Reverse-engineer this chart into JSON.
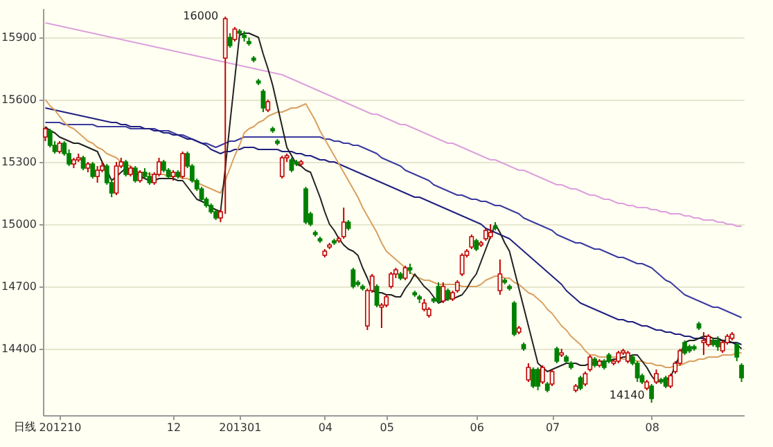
{
  "chart_data": {
    "type": "candlestick",
    "categories": [
      null,
      null,
      null,
      "201210",
      null,
      null,
      null,
      null,
      null,
      null,
      null,
      null,
      null,
      null,
      null,
      null,
      null,
      null,
      null,
      null,
      null,
      null,
      null,
      null,
      null,
      null,
      null,
      "12",
      null,
      null,
      null,
      null,
      null,
      null,
      null,
      null,
      null,
      null,
      null,
      null,
      null,
      "201301",
      null,
      null,
      null,
      null,
      null,
      null,
      null,
      null,
      null,
      null,
      null,
      null,
      null,
      null,
      null,
      null,
      null,
      "04",
      null,
      null,
      null,
      null,
      null,
      null,
      null,
      null,
      null,
      null,
      null,
      null,
      "05",
      null,
      null,
      null,
      null,
      null,
      null,
      null,
      null,
      null,
      null,
      null,
      null,
      null,
      null,
      null,
      null,
      null,
      null,
      "06",
      null,
      null,
      null,
      null,
      null,
      null,
      null,
      null,
      null,
      null,
      null,
      null,
      null,
      null,
      null,
      "07",
      null,
      null,
      null,
      null,
      null,
      null,
      null,
      null,
      null,
      null,
      null,
      null,
      null,
      null,
      null,
      null,
      null,
      null,
      null,
      null,
      "08",
      null,
      null,
      null,
      null,
      null,
      null,
      null,
      null,
      null,
      null,
      null,
      null,
      null,
      null,
      null,
      null,
      null,
      null,
      null
    ],
    "ohlc": [
      [
        15420,
        15470,
        15400,
        15460
      ],
      [
        15450,
        15460,
        15370,
        15380
      ],
      [
        15380,
        15400,
        15340,
        15350
      ],
      [
        15350,
        15400,
        15340,
        15390
      ],
      [
        15390,
        15400,
        15330,
        15340
      ],
      [
        15340,
        15360,
        15280,
        15290
      ],
      [
        15290,
        15320,
        15270,
        15310
      ],
      [
        15310,
        15340,
        15300,
        15320
      ],
      [
        15320,
        15330,
        15260,
        15270
      ],
      [
        15270,
        15300,
        15250,
        15290
      ],
      [
        15290,
        15300,
        15220,
        15230
      ],
      [
        15230,
        15280,
        15200,
        15260
      ],
      [
        15260,
        15300,
        15250,
        15280
      ],
      [
        15280,
        15290,
        15190,
        15200
      ],
      [
        15200,
        15220,
        15130,
        15150
      ],
      [
        15150,
        15300,
        15140,
        15280
      ],
      [
        15280,
        15320,
        15270,
        15300
      ],
      [
        15300,
        15310,
        15230,
        15240
      ],
      [
        15240,
        15280,
        15230,
        15270
      ],
      [
        15270,
        15280,
        15200,
        15210
      ],
      [
        15210,
        15260,
        15200,
        15250
      ],
      [
        15250,
        15270,
        15220,
        15230
      ],
      [
        15230,
        15250,
        15190,
        15200
      ],
      [
        15200,
        15250,
        15190,
        15240
      ],
      [
        15240,
        15320,
        15230,
        15300
      ],
      [
        15300,
        15310,
        15250,
        15260
      ],
      [
        15260,
        15270,
        15220,
        15230
      ],
      [
        15230,
        15260,
        15210,
        15250
      ],
      [
        15250,
        15260,
        15220,
        15230
      ],
      [
        15230,
        15350,
        15220,
        15340
      ],
      [
        15340,
        15350,
        15270,
        15280
      ],
      [
        15280,
        15290,
        15200,
        15210
      ],
      [
        15210,
        15220,
        15160,
        15170
      ],
      [
        15170,
        15180,
        15110,
        15120
      ],
      [
        15120,
        15130,
        15080,
        15090
      ],
      [
        15090,
        15100,
        15050,
        15060
      ],
      [
        15060,
        15070,
        15020,
        15030
      ],
      [
        15030,
        15070,
        15010,
        15060
      ],
      [
        15800,
        16000,
        15050,
        15990
      ],
      [
        15900,
        15920,
        15850,
        15860
      ],
      [
        15890,
        15950,
        15880,
        15940
      ],
      [
        15930,
        15940,
        15910,
        15920
      ],
      [
        15910,
        15930,
        15880,
        15900
      ],
      [
        15880,
        15900,
        15860,
        15870
      ],
      [
        15800,
        15810,
        15780,
        15790
      ],
      [
        15690,
        15700,
        15670,
        15680
      ],
      [
        15640,
        15650,
        15540,
        15560
      ],
      [
        15550,
        15600,
        15540,
        15590
      ],
      [
        15460,
        15470,
        15440,
        15450
      ],
      [
        15400,
        15410,
        15380,
        15390
      ],
      [
        15230,
        15330,
        15220,
        15320
      ],
      [
        15320,
        15340,
        15300,
        15330
      ],
      [
        15310,
        15320,
        15250,
        15260
      ],
      [
        15300,
        15310,
        15280,
        15290
      ],
      [
        15290,
        15310,
        15280,
        15300
      ],
      [
        15170,
        15180,
        15000,
        15010
      ],
      [
        15050,
        15060,
        14990,
        15000
      ],
      [
        14960,
        14970,
        14940,
        14950
      ],
      [
        14930,
        14940,
        14910,
        14920
      ],
      [
        14850,
        14880,
        14840,
        14870
      ],
      [
        14890,
        14910,
        14880,
        14900
      ],
      [
        14920,
        14930,
        14900,
        14910
      ],
      [
        14920,
        14940,
        14910,
        14930
      ],
      [
        14940,
        15080,
        14930,
        15010
      ],
      [
        15010,
        15020,
        14970,
        14980
      ],
      [
        14780,
        14790,
        14690,
        14700
      ],
      [
        14720,
        14730,
        14700,
        14710
      ],
      [
        14700,
        14710,
        14680,
        14690
      ],
      [
        14510,
        14690,
        14490,
        14680
      ],
      [
        14680,
        14760,
        14670,
        14750
      ],
      [
        14700,
        14710,
        14600,
        14610
      ],
      [
        14600,
        14620,
        14500,
        14610
      ],
      [
        14610,
        14660,
        14600,
        14650
      ],
      [
        14700,
        14770,
        14690,
        14760
      ],
      [
        14760,
        14790,
        14740,
        14780
      ],
      [
        14760,
        14770,
        14730,
        14740
      ],
      [
        14740,
        14800,
        14730,
        14790
      ],
      [
        14790,
        14810,
        14760,
        14780
      ],
      [
        14670,
        14680,
        14650,
        14660
      ],
      [
        14650,
        14660,
        14620,
        14640
      ],
      [
        14590,
        14640,
        14580,
        14620
      ],
      [
        14560,
        14600,
        14550,
        14590
      ],
      [
        14640,
        14650,
        14620,
        14630
      ],
      [
        14700,
        14720,
        14620,
        14630
      ],
      [
        14630,
        14720,
        14620,
        14700
      ],
      [
        14680,
        14690,
        14630,
        14640
      ],
      [
        14640,
        14680,
        14630,
        14670
      ],
      [
        14680,
        14730,
        14670,
        14720
      ],
      [
        14760,
        14860,
        14750,
        14850
      ],
      [
        14850,
        14880,
        14840,
        14870
      ],
      [
        14890,
        14950,
        14880,
        14940
      ],
      [
        14920,
        14930,
        14870,
        14880
      ],
      [
        14900,
        14920,
        14890,
        14910
      ],
      [
        14930,
        14980,
        14920,
        14970
      ],
      [
        14940,
        15000,
        14930,
        14960
      ],
      [
        14990,
        15010,
        14970,
        14980
      ],
      [
        14680,
        14830,
        14660,
        14760
      ],
      [
        14730,
        14740,
        14710,
        14720
      ],
      [
        14700,
        14710,
        14680,
        14690
      ],
      [
        14620,
        14630,
        14460,
        14470
      ],
      [
        14480,
        14510,
        14470,
        14500
      ],
      [
        14420,
        14430,
        14390,
        14400
      ],
      [
        14250,
        14330,
        14240,
        14310
      ],
      [
        14300,
        14310,
        14210,
        14220
      ],
      [
        14300,
        14310,
        14200,
        14220
      ],
      [
        14240,
        14320,
        14230,
        14310
      ],
      [
        14230,
        14240,
        14190,
        14200
      ],
      [
        14230,
        14300,
        14220,
        14290
      ],
      [
        14400,
        14410,
        14330,
        14340
      ],
      [
        14370,
        14400,
        14360,
        14380
      ],
      [
        14360,
        14370,
        14330,
        14340
      ],
      [
        14330,
        14340,
        14300,
        14310
      ],
      [
        14200,
        14230,
        14190,
        14220
      ],
      [
        14260,
        14270,
        14200,
        14210
      ],
      [
        14230,
        14290,
        14220,
        14280
      ],
      [
        14300,
        14370,
        14290,
        14360
      ],
      [
        14350,
        14360,
        14310,
        14320
      ],
      [
        14320,
        14350,
        14310,
        14340
      ],
      [
        14340,
        14350,
        14300,
        14310
      ],
      [
        14370,
        14380,
        14330,
        14340
      ],
      [
        14330,
        14350,
        14320,
        14340
      ],
      [
        14340,
        14390,
        14330,
        14380
      ],
      [
        14380,
        14400,
        14370,
        14390
      ],
      [
        14340,
        14390,
        14330,
        14380
      ],
      [
        14360,
        14370,
        14320,
        14330
      ],
      [
        14330,
        14340,
        14240,
        14260
      ],
      [
        14270,
        14280,
        14230,
        14240
      ],
      [
        14210,
        14250,
        14200,
        14240
      ],
      [
        14220,
        14230,
        14140,
        14160
      ],
      [
        14240,
        14300,
        14230,
        14280
      ],
      [
        14250,
        14260,
        14230,
        14240
      ],
      [
        14260,
        14270,
        14210,
        14220
      ],
      [
        14220,
        14280,
        14210,
        14270
      ],
      [
        14290,
        14340,
        14280,
        14330
      ],
      [
        14330,
        14400,
        14320,
        14390
      ],
      [
        14430,
        14440,
        14370,
        14380
      ],
      [
        14410,
        14420,
        14380,
        14390
      ],
      [
        14410,
        14420,
        14390,
        14400
      ],
      [
        14520,
        14530,
        14490,
        14500
      ],
      [
        14430,
        14480,
        14370,
        14440
      ],
      [
        14420,
        14470,
        14410,
        14460
      ],
      [
        14440,
        14450,
        14410,
        14420
      ],
      [
        14440,
        14460,
        14390,
        14410
      ],
      [
        14390,
        14440,
        14380,
        14430
      ],
      [
        14430,
        14470,
        14420,
        14460
      ],
      [
        14450,
        14480,
        14440,
        14470
      ],
      [
        14420,
        14430,
        14340,
        14360
      ],
      [
        14320,
        14330,
        14240,
        14260
      ]
    ],
    "series": [
      {
        "type": "line",
        "color": "#dda0dd",
        "values": [
          15970,
          15965,
          15960,
          15955,
          15950,
          15945,
          15940,
          15935,
          15930,
          15925,
          15920,
          15915,
          15910,
          15905,
          15900,
          15895,
          15890,
          15885,
          15880,
          15875,
          15870,
          15865,
          15860,
          15855,
          15850,
          15845,
          15840,
          15835,
          15830,
          15825,
          15820,
          15815,
          15810,
          15805,
          15800,
          15795,
          15790,
          15785,
          15780,
          15775,
          15770,
          15765,
          15760,
          15755,
          15750,
          15745,
          15740,
          15735,
          15730,
          15725,
          15720,
          15710,
          15700,
          15690,
          15680,
          15670,
          15660,
          15650,
          15640,
          15630,
          15620,
          15610,
          15600,
          15590,
          15580,
          15570,
          15560,
          15550,
          15540,
          15530,
          15530,
          15520,
          15510,
          15500,
          15490,
          15480,
          15480,
          15470,
          15460,
          15450,
          15440,
          15430,
          15420,
          15410,
          15400,
          15390,
          15390,
          15380,
          15370,
          15360,
          15350,
          15340,
          15330,
          15320,
          15310,
          15310,
          15300,
          15290,
          15280,
          15270,
          15260,
          15260,
          15250,
          15240,
          15230,
          15220,
          15210,
          15200,
          15190,
          15190,
          15180,
          15170,
          15170,
          15160,
          15150,
          15140,
          15140,
          15130,
          15120,
          15120,
          15110,
          15100,
          15100,
          15090,
          15090,
          15080,
          15080,
          15080,
          15070,
          15070,
          15060,
          15060,
          15050,
          15050,
          15050,
          15040,
          15040,
          15030,
          15030,
          15020,
          15020,
          15020,
          15010,
          15010,
          15000,
          15000,
          14990,
          14990
        ]
      },
      {
        "type": "line",
        "color": "#3a3aa0",
        "values": [
          15490,
          15490,
          15490,
          15490,
          15480,
          15480,
          15480,
          15480,
          15480,
          15480,
          15480,
          15470,
          15470,
          15470,
          15470,
          15470,
          15470,
          15470,
          15460,
          15460,
          15460,
          15460,
          15460,
          15460,
          15450,
          15450,
          15450,
          15440,
          15430,
          15430,
          15420,
          15410,
          15400,
          15390,
          15390,
          15380,
          15370,
          15380,
          15390,
          15400,
          15400,
          15410,
          15420,
          15420,
          15420,
          15420,
          15420,
          15420,
          15420,
          15420,
          15420,
          15420,
          15420,
          15420,
          15420,
          15420,
          15420,
          15420,
          15420,
          15410,
          15410,
          15400,
          15400,
          15390,
          15390,
          15380,
          15380,
          15370,
          15360,
          15350,
          15340,
          15320,
          15310,
          15300,
          15290,
          15280,
          15260,
          15250,
          15240,
          15230,
          15220,
          15210,
          15190,
          15180,
          15170,
          15160,
          15150,
          15140,
          15140,
          15130,
          15120,
          15120,
          15110,
          15110,
          15100,
          15090,
          15090,
          15080,
          15070,
          15060,
          15050,
          15030,
          15020,
          15010,
          15000,
          14990,
          14980,
          14970,
          14950,
          14940,
          14930,
          14920,
          14910,
          14910,
          14900,
          14890,
          14880,
          14880,
          14870,
          14860,
          14850,
          14840,
          14840,
          14830,
          14820,
          14810,
          14810,
          14800,
          14790,
          14770,
          14750,
          14730,
          14720,
          14700,
          14680,
          14660,
          14650,
          14640,
          14630,
          14620,
          14610,
          14600,
          14600,
          14590,
          14580,
          14570,
          14560,
          14550
        ]
      },
      {
        "type": "line",
        "color": "#202080",
        "values": [
          15560,
          15555,
          15550,
          15545,
          15540,
          15535,
          15530,
          15525,
          15520,
          15515,
          15510,
          15505,
          15500,
          15495,
          15490,
          15490,
          15480,
          15480,
          15470,
          15470,
          15470,
          15460,
          15460,
          15450,
          15450,
          15440,
          15440,
          15430,
          15430,
          15420,
          15410,
          15410,
          15400,
          15390,
          15380,
          15360,
          15350,
          15340,
          15350,
          15350,
          15360,
          15360,
          15370,
          15370,
          15370,
          15360,
          15360,
          15360,
          15360,
          15360,
          15350,
          15350,
          15350,
          15340,
          15340,
          15330,
          15330,
          15320,
          15310,
          15310,
          15300,
          15300,
          15290,
          15280,
          15270,
          15260,
          15250,
          15240,
          15230,
          15220,
          15210,
          15200,
          15190,
          15180,
          15170,
          15160,
          15150,
          15140,
          15130,
          15130,
          15120,
          15110,
          15100,
          15090,
          15080,
          15070,
          15060,
          15050,
          15040,
          15030,
          15020,
          15010,
          15000,
          14980,
          14970,
          14960,
          14950,
          14940,
          14930,
          14910,
          14890,
          14870,
          14850,
          14830,
          14810,
          14790,
          14770,
          14750,
          14730,
          14710,
          14680,
          14660,
          14640,
          14620,
          14610,
          14600,
          14590,
          14580,
          14570,
          14560,
          14550,
          14540,
          14540,
          14530,
          14530,
          14520,
          14510,
          14510,
          14500,
          14490,
          14490,
          14480,
          14480,
          14470,
          14470,
          14460,
          14460,
          14450,
          14450,
          14450,
          14440,
          14440,
          14440,
          14440,
          14430,
          14430,
          14430,
          14420
        ]
      },
      {
        "type": "line",
        "color": "#d9a060",
        "values": [
          15600,
          15570,
          15550,
          15520,
          15490,
          15470,
          15460,
          15440,
          15420,
          15400,
          15390,
          15370,
          15360,
          15340,
          15330,
          15320,
          15300,
          15290,
          15280,
          15260,
          15250,
          15250,
          15240,
          15240,
          15240,
          15240,
          15230,
          15230,
          15230,
          15220,
          15220,
          15210,
          15200,
          15190,
          15180,
          15170,
          15160,
          15150,
          15210,
          15270,
          15330,
          15380,
          15440,
          15460,
          15470,
          15490,
          15500,
          15520,
          15530,
          15540,
          15540,
          15550,
          15560,
          15560,
          15570,
          15580,
          15540,
          15500,
          15450,
          15410,
          15370,
          15330,
          15290,
          15250,
          15210,
          15170,
          15130,
          15080,
          15040,
          15000,
          14960,
          14910,
          14870,
          14850,
          14830,
          14810,
          14790,
          14770,
          14750,
          14740,
          14730,
          14730,
          14720,
          14710,
          14710,
          14710,
          14710,
          14710,
          14700,
          14700,
          14700,
          14700,
          14710,
          14730,
          14740,
          14750,
          14750,
          14740,
          14740,
          14720,
          14710,
          14690,
          14670,
          14660,
          14640,
          14620,
          14590,
          14570,
          14540,
          14510,
          14490,
          14460,
          14440,
          14420,
          14390,
          14370,
          14370,
          14360,
          14360,
          14360,
          14360,
          14360,
          14350,
          14350,
          14350,
          14340,
          14340,
          14330,
          14330,
          14320,
          14320,
          14310,
          14310,
          14320,
          14320,
          14330,
          14340,
          14340,
          14350,
          14350,
          14360,
          14360,
          14360,
          14370,
          14370,
          14370,
          14380,
          14380
        ]
      },
      {
        "type": "line",
        "color": "#202020",
        "values": [
          15470,
          15450,
          15440,
          15420,
          15410,
          15400,
          15390,
          15390,
          15380,
          15370,
          15360,
          15350,
          15300,
          15260,
          15210,
          15230,
          15250,
          15270,
          15260,
          15250,
          15230,
          15220,
          15210,
          15210,
          15220,
          15220,
          15220,
          15220,
          15210,
          15210,
          15180,
          15150,
          15120,
          15110,
          15100,
          15080,
          15070,
          15060,
          15270,
          15490,
          15700,
          15910,
          15920,
          15920,
          15910,
          15900,
          15820,
          15750,
          15670,
          15570,
          15470,
          15370,
          15330,
          15290,
          15280,
          15260,
          15250,
          15190,
          15130,
          15060,
          15000,
          14970,
          14930,
          14900,
          14880,
          14870,
          14850,
          14790,
          14740,
          14680,
          14670,
          14670,
          14660,
          14660,
          14650,
          14650,
          14690,
          14720,
          14760,
          14730,
          14700,
          14680,
          14650,
          14620,
          14630,
          14640,
          14640,
          14650,
          14660,
          14690,
          14730,
          14760,
          14820,
          14880,
          14940,
          15000,
          14960,
          14910,
          14870,
          14780,
          14690,
          14600,
          14510,
          14420,
          14330,
          14310,
          14290,
          14300,
          14310,
          14320,
          14330,
          14330,
          14330,
          14320,
          14320,
          14330,
          14330,
          14340,
          14340,
          14340,
          14350,
          14350,
          14360,
          14360,
          14370,
          14370,
          14340,
          14310,
          14270,
          14240,
          14250,
          14250,
          14260,
          14320,
          14370,
          14430,
          14440,
          14440,
          14450,
          14460,
          14460,
          14450,
          14450,
          14440,
          14440,
          14430,
          14420,
          14400
        ]
      }
    ],
    "ylim": [
      14080,
      16040
    ],
    "yticks": [
      14400,
      14700,
      15000,
      15300,
      15600,
      15900
    ],
    "grid": "y",
    "annotations": [
      "日线",
      "16000",
      "14140"
    ]
  }
}
